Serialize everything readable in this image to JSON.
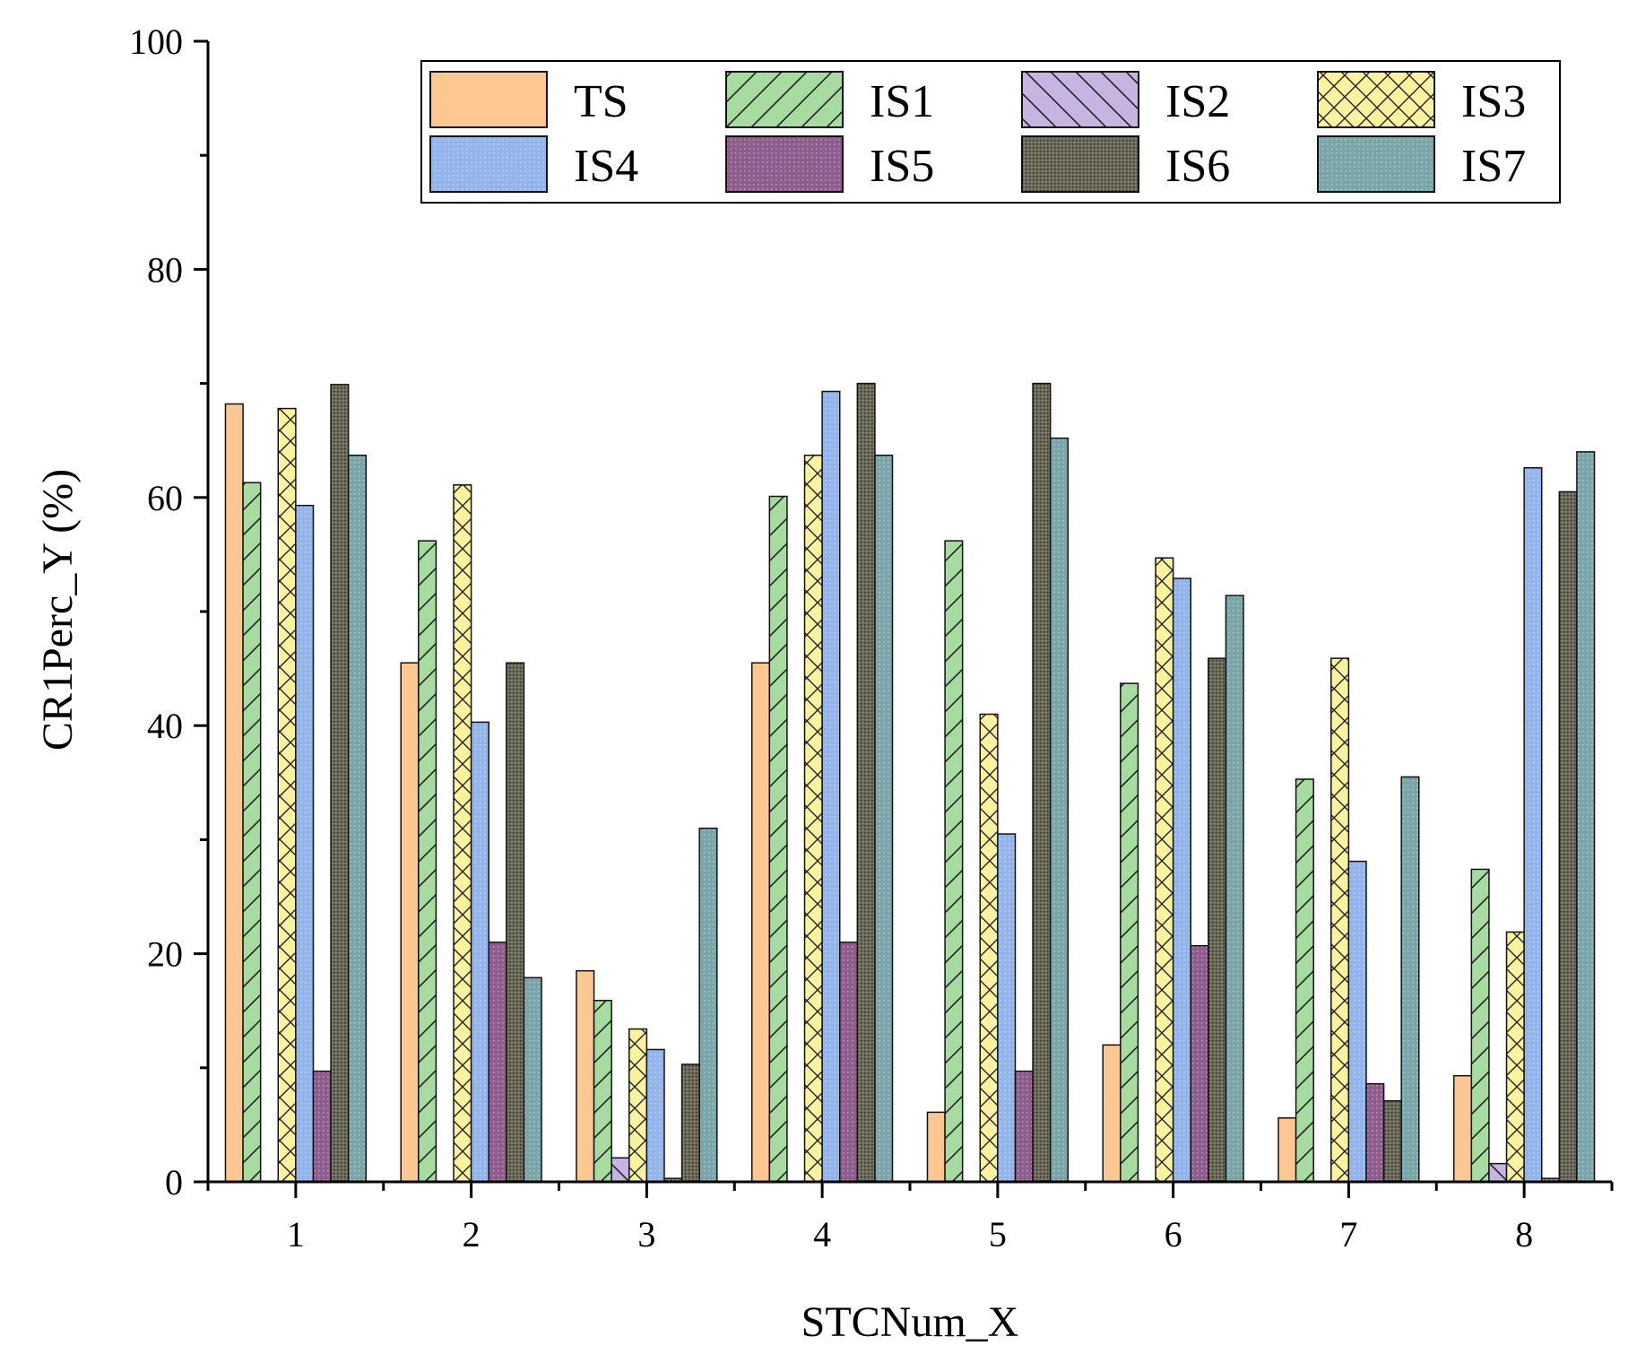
{
  "chart_data": {
    "type": "bar",
    "title": "",
    "xlabel": "STCNum_X",
    "ylabel": "CR1Perc_Y (%)",
    "ylim": [
      0,
      100
    ],
    "yticks": [
      "0",
      "20",
      "40",
      "60",
      "80",
      "100"
    ],
    "categories": [
      "1",
      "2",
      "3",
      "4",
      "5",
      "6",
      "7",
      "8"
    ],
    "grid": false,
    "legend_position": "top-right",
    "series": [
      {
        "name": "TS",
        "color": "#fdc792",
        "pattern": "solid",
        "values": [
          68.2,
          45.5,
          18.5,
          45.5,
          6.1,
          12.0,
          5.6,
          9.3
        ]
      },
      {
        "name": "IS1",
        "color": "#a6dca0",
        "pattern": "hatch-fwd",
        "values": [
          61.3,
          56.2,
          15.9,
          60.1,
          56.2,
          43.7,
          35.3,
          27.4
        ]
      },
      {
        "name": "IS2",
        "color": "#c7b4e0",
        "pattern": "hatch-back",
        "values": [
          0,
          0,
          2.1,
          0,
          0,
          0,
          0,
          1.6
        ]
      },
      {
        "name": "IS3",
        "color": "#fbf2a0",
        "pattern": "crosshatch",
        "values": [
          67.8,
          61.1,
          13.4,
          63.7,
          41.0,
          54.7,
          45.9,
          21.9
        ]
      },
      {
        "name": "IS4",
        "color": "#94b4ec",
        "pattern": "dots",
        "values": [
          59.3,
          40.3,
          11.6,
          69.3,
          30.5,
          52.9,
          28.1,
          62.6
        ]
      },
      {
        "name": "IS5",
        "color": "#8e5d8e",
        "pattern": "dots",
        "values": [
          9.7,
          21.0,
          0.3,
          21.0,
          9.7,
          20.7,
          8.6,
          0.3
        ]
      },
      {
        "name": "IS6",
        "color": "#6a6a56",
        "pattern": "dense",
        "values": [
          69.9,
          45.5,
          10.3,
          70.0,
          70.0,
          45.9,
          7.1,
          60.5
        ]
      },
      {
        "name": "IS7",
        "color": "#7aa6aa",
        "pattern": "dots",
        "values": [
          63.7,
          17.9,
          31.0,
          63.7,
          65.2,
          51.4,
          35.5,
          64.0
        ]
      }
    ]
  }
}
